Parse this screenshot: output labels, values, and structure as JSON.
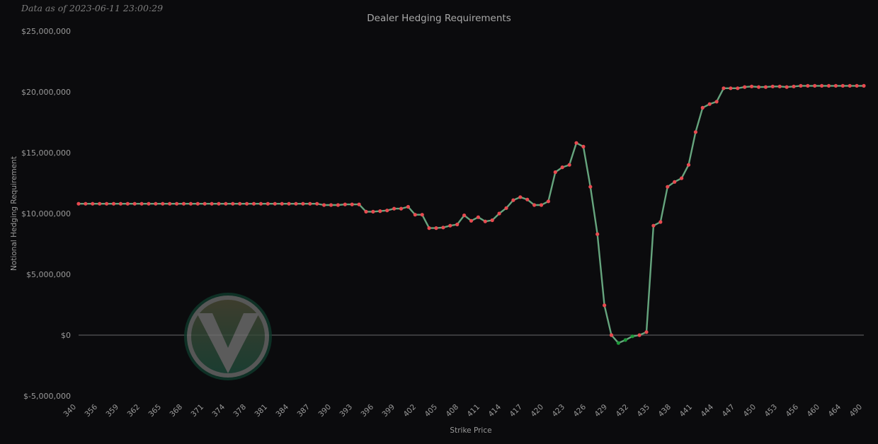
{
  "timestamp": "Data as of 2023-06-11 23:00:29",
  "colors": {
    "background": "#0b0b0d",
    "line": "#66a57e",
    "positive_marker": "#e84a50",
    "negative_marker": "#1e9a3a",
    "zero_line": "#6a6a6a"
  },
  "chart_data": {
    "type": "line",
    "title": "Dealer Hedging Requirements",
    "xlabel": "Strike Price",
    "ylabel": "Notional Hedging Requirement",
    "ylim": [
      -5000000,
      25000000
    ],
    "y_ticks": [
      -5000000,
      0,
      5000000,
      10000000,
      15000000,
      20000000,
      25000000
    ],
    "y_tick_labels": [
      "$-5,000,000",
      "$0",
      "$5,000,000",
      "$10,000,000",
      "$15,000,000",
      "$20,000,000",
      "$25,000,000"
    ],
    "x_tick_labels": [
      "340",
      "356",
      "359",
      "362",
      "365",
      "368",
      "371",
      "374",
      "378",
      "381",
      "384",
      "387",
      "390",
      "393",
      "396",
      "399",
      "402",
      "405",
      "408",
      "411",
      "414",
      "417",
      "420",
      "423",
      "426",
      "429",
      "432",
      "435",
      "438",
      "441",
      "444",
      "447",
      "450",
      "453",
      "456",
      "460",
      "464",
      "490"
    ],
    "grid": false,
    "legend": "none",
    "series": [
      {
        "values": [
          10800000,
          10800000,
          10800000,
          10800000,
          10800000,
          10800000,
          10800000,
          10800000,
          10800000,
          10800000,
          10800000,
          10800000,
          10800000,
          10800000,
          10800000,
          10800000,
          10800000,
          10800000,
          10800000,
          10800000,
          10800000,
          10800000,
          10800000,
          10800000,
          10800000,
          10800000,
          10800000,
          10800000,
          10800000,
          10800000,
          10800000,
          10800000,
          10800000,
          10800000,
          10800000,
          10700000,
          10700000,
          10700000,
          10750000,
          10750000,
          10750000,
          10150000,
          10150000,
          10200000,
          10250000,
          10400000,
          10400000,
          10550000,
          9900000,
          9900000,
          8800000,
          8800000,
          8850000,
          9000000,
          9100000,
          9850000,
          9400000,
          9700000,
          9350000,
          9450000,
          10000000,
          10450000,
          11100000,
          11350000,
          11150000,
          10700000,
          10700000,
          11000000,
          13400000,
          13800000,
          14000000,
          15800000,
          15500000,
          12200000,
          8300000,
          2450000,
          0,
          -650000,
          -400000,
          -100000,
          0,
          250000,
          9000000,
          9300000,
          12200000,
          12600000,
          12900000,
          14000000,
          16700000,
          18700000,
          19000000,
          19200000,
          20300000,
          20300000,
          20300000,
          20400000,
          20450000,
          20400000,
          20400000,
          20450000,
          20450000,
          20400000,
          20450000,
          20500000,
          20500000,
          20500000,
          20500000,
          20500000,
          20500000,
          20500000,
          20500000,
          20500000,
          20500000
        ]
      }
    ]
  }
}
